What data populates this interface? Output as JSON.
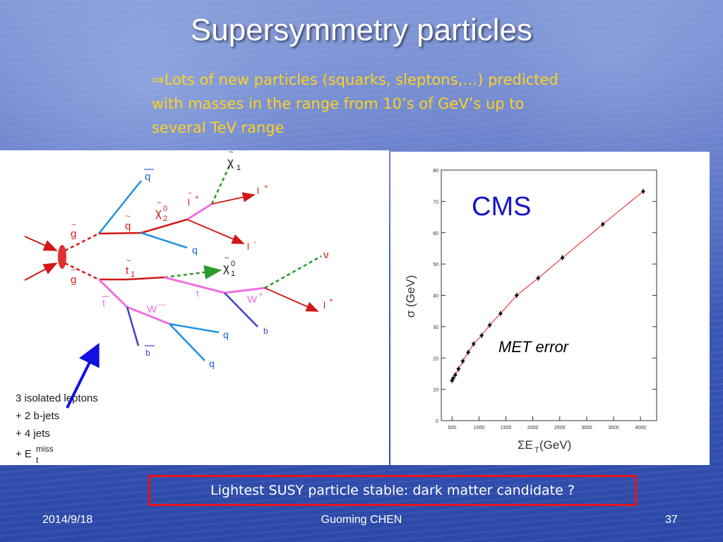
{
  "slide": {
    "title": "Supersymmetry particles",
    "bullet_arrow": "⇒",
    "bullet_lines": [
      "Lots of new particles (squarks, sleptons,…) predicted",
      "with masses  in the   range from 10’s of GeV’s up to",
      "several TeV range"
    ],
    "notice": "Lightest SUSY particle stable: dark matter candidate ?"
  },
  "footer": {
    "date": "2014/9/18",
    "author": "Guoming CHEN",
    "page": "37"
  },
  "feynman": {
    "labels": {
      "gluino_top": "g",
      "gluino_bottom": "g",
      "squark": "q",
      "antiquark": "q",
      "quark_1": "q",
      "chi2": "χ",
      "chi2_sup": "0",
      "chi2_sub": "2",
      "chi1_top": "χ",
      "chi1_top_sub": "1",
      "lepton_plus_tilde": "l",
      "lepton_plus_tilde_sup": "+",
      "lepton_plus": "l",
      "lepton_plus_sup": "+",
      "lepton_minus": "l",
      "lepton_minus_sup": "-",
      "stop": "t",
      "stop_sub": "1",
      "chi1_mid": "χ",
      "chi1_mid_sup": "0",
      "chi1_mid_sub": "1",
      "neutrino": "ν",
      "tbar": "t",
      "t": "t",
      "w_minus": "W",
      "w_minus_sup": "—",
      "w_plus": "W",
      "w_plus_sup": "+",
      "lepton_plus_2": "l",
      "lepton_plus_2_sup": "+",
      "b": "b",
      "bbar": "b",
      "quark_2": "q",
      "quark_3": "q"
    },
    "signature": {
      "line1": "3 isolated leptons",
      "line2": "+ 2 b-jets",
      "line3": "+ 4 jets",
      "line4_prefix": "+ E",
      "line4_sup": "miss",
      "line4_sub": "t"
    }
  },
  "chart_data": {
    "type": "scatter",
    "title": "CMS",
    "annotation": "MET error",
    "xlabel": "ΣE",
    "xlabel_sub": "T",
    "xlabel_unit": " (GeV)",
    "ylabel": "σ (GeV)",
    "xlim": [
      300,
      4300
    ],
    "ylim": [
      0,
      80
    ],
    "xticks": [
      500,
      1000,
      1500,
      2000,
      2500,
      3000,
      3500,
      4000
    ],
    "yticks": [
      0,
      10,
      20,
      30,
      40,
      50,
      60,
      70,
      80
    ],
    "series": [
      {
        "points": [
          {
            "x": 500,
            "y": 12.8
          },
          {
            "x": 520,
            "y": 13.5
          },
          {
            "x": 560,
            "y": 14.6
          },
          {
            "x": 620,
            "y": 16.5
          },
          {
            "x": 700,
            "y": 19
          },
          {
            "x": 800,
            "y": 21.8
          },
          {
            "x": 900,
            "y": 24.5
          },
          {
            "x": 1050,
            "y": 27.2
          },
          {
            "x": 1200,
            "y": 30.5
          },
          {
            "x": 1400,
            "y": 34.2
          },
          {
            "x": 1700,
            "y": 40
          },
          {
            "x": 2100,
            "y": 45.5
          },
          {
            "x": 2550,
            "y": 52
          },
          {
            "x": 3300,
            "y": 62.7
          },
          {
            "x": 4050,
            "y": 73.2
          }
        ]
      }
    ],
    "colors": {
      "points": "#000000",
      "fit": "#e8141c",
      "title": "#1515c8"
    }
  }
}
